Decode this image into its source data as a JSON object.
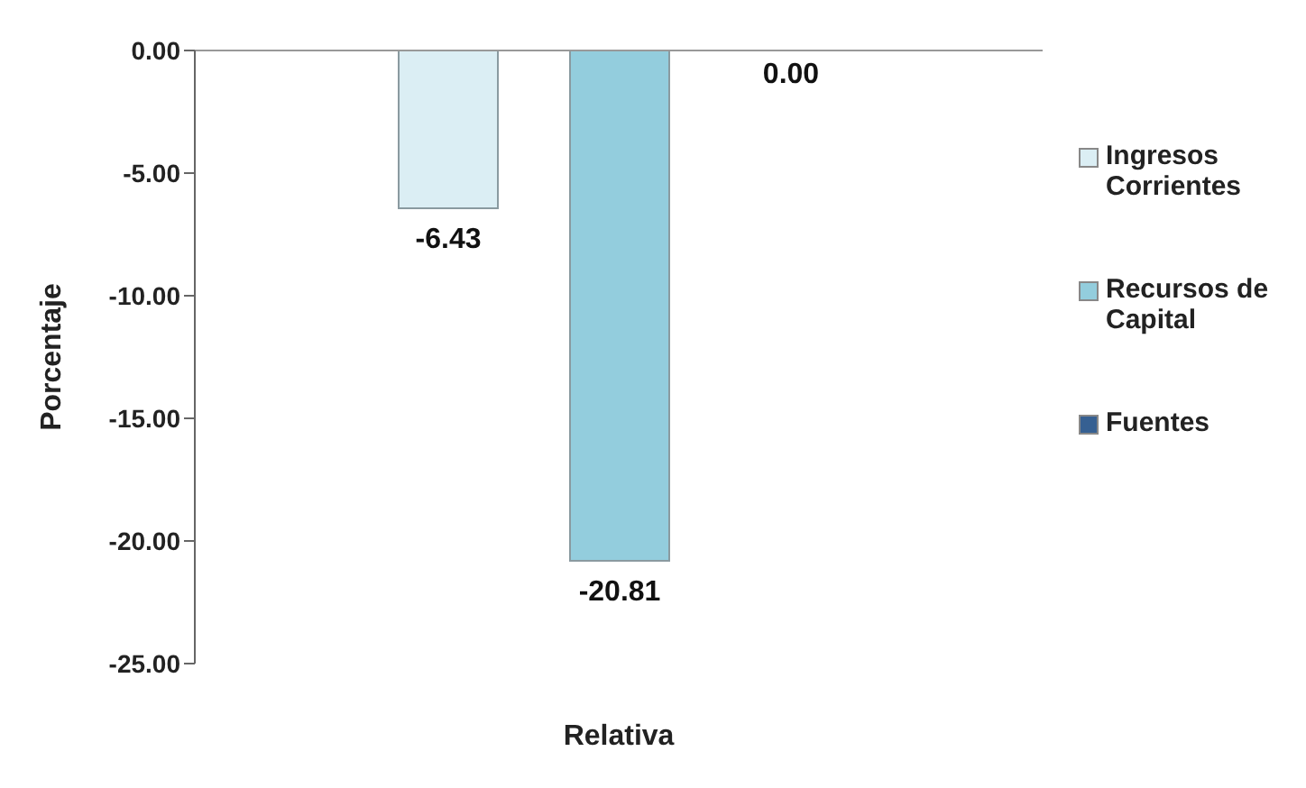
{
  "chart_data": {
    "type": "bar",
    "xlabel": "Relativa",
    "ylabel": "Porcentaje",
    "categories": [
      null
    ],
    "series": [
      {
        "name": "Ingresos Corrientes",
        "color": "#dbeef4",
        "values": [
          -6.43
        ],
        "value_labels": [
          "-6.43"
        ]
      },
      {
        "name": "Recursos de Capital",
        "color": "#93cddd",
        "values": [
          -20.81
        ],
        "value_labels": [
          "-20.81"
        ]
      },
      {
        "name": "Fuentes",
        "color": "#366092",
        "values": [
          0.0
        ],
        "value_labels": [
          "0.00"
        ]
      }
    ],
    "ylim": [
      -25,
      0
    ],
    "yticks": [
      {
        "value": 0,
        "label": "0.00"
      },
      {
        "value": -5,
        "label": "-5.00"
      },
      {
        "value": -10,
        "label": "-10.00"
      },
      {
        "value": -15,
        "label": "-15.00"
      },
      {
        "value": -20,
        "label": "-20.00"
      },
      {
        "value": -25,
        "label": "-25.00"
      }
    ],
    "legend": "right"
  }
}
